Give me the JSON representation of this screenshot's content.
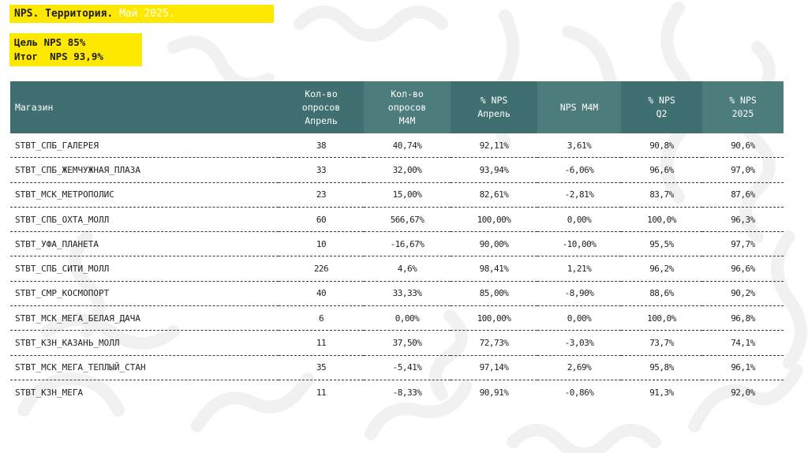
{
  "header": {
    "title": "NPS. Территория.",
    "month": "Май 2025.",
    "goal_line": "Цель NPS 85%",
    "result_line": "Итог  NPS 93,9%"
  },
  "table": {
    "columns": [
      "Магазин",
      "Кол-во\nопросов\nАпрель",
      "Кол-во\nопросов\nМ4М",
      "% NPS\nАпрель",
      "NPS М4М",
      "% NPS\nQ2",
      "% NPS\n2025"
    ],
    "rows": [
      [
        "STBT_СПБ_ГАЛЕРЕЯ",
        "38",
        "40,74%",
        "92,11%",
        "3,61%",
        "90,8%",
        "90,6%"
      ],
      [
        "STBT_СПБ_ЖЕМЧУЖНАЯ_ПЛАЗА",
        "33",
        "32,00%",
        "93,94%",
        "-6,06%",
        "96,6%",
        "97,0%"
      ],
      [
        "STBT_МСК_МЕТРОПОЛИС",
        "23",
        "15,00%",
        "82,61%",
        "-2,81%",
        "83,7%",
        "87,6%"
      ],
      [
        "STBT_СПБ_ОХТА_МОЛЛ",
        "60",
        "566,67%",
        "100,00%",
        "0,00%",
        "100,0%",
        "96,3%"
      ],
      [
        "STBT_УФА_ПЛАНЕТА",
        "10",
        "-16,67%",
        "90,00%",
        "-10,00%",
        "95,5%",
        "97,7%"
      ],
      [
        "STBT_СПБ_СИТИ_МОЛЛ",
        "226",
        "4,6%",
        "98,41%",
        "1,21%",
        "96,2%",
        "96,6%"
      ],
      [
        "STBT_СМР_КОСМОПОРТ",
        "40",
        "33,33%",
        "85,00%",
        "-8,90%",
        "88,6%",
        "90,2%"
      ],
      [
        "STBT_МСК_МЕГА_БЕЛАЯ_ДАЧА",
        "6",
        "0,00%",
        "100,00%",
        "0,00%",
        "100,0%",
        "96,8%"
      ],
      [
        "STBT_КЗН_КАЗАНЬ_МОЛЛ",
        "11",
        "37,50%",
        "72,73%",
        "-3,03%",
        "73,7%",
        "74,1%"
      ],
      [
        "STBT_МСК_МЕГА_ТЕПЛЫЙ_СТАН",
        "35",
        "-5,41%",
        "97,14%",
        "2,69%",
        "95,8%",
        "96,1%"
      ],
      [
        "STBT_КЗН_МЕГА",
        "11",
        "-8,33%",
        "90,91%",
        "-0,86%",
        "91,3%",
        "92,0%"
      ]
    ]
  },
  "colors": {
    "accent_yellow": "#ffe800",
    "header_teal": "#3f6f70",
    "header_teal_shade": "#4d7c7d",
    "background_pattern": "#f1f1f1"
  }
}
